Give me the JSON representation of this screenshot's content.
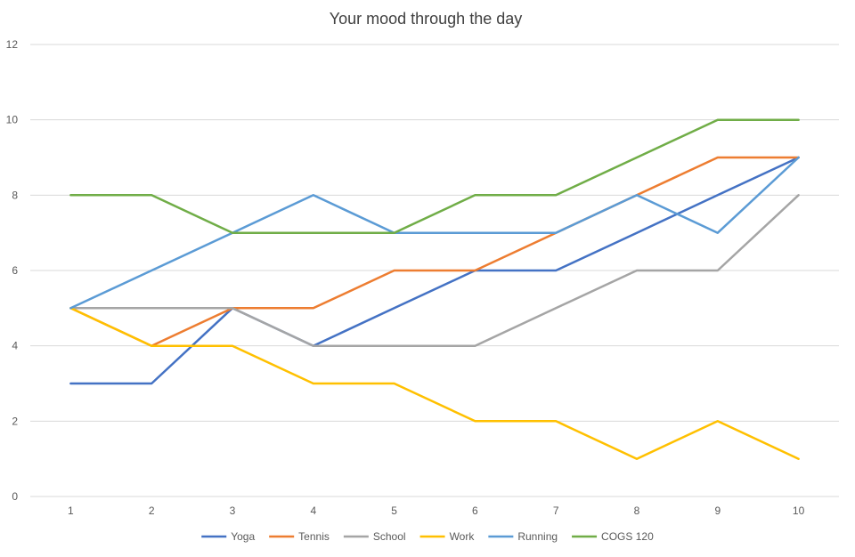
{
  "chart_data": {
    "type": "line",
    "title": "Your mood through the day",
    "xlabel": "",
    "ylabel": "",
    "x": [
      1,
      2,
      3,
      4,
      5,
      6,
      7,
      8,
      9,
      10
    ],
    "ylim": [
      0,
      12
    ],
    "y_ticks": [
      0,
      2,
      4,
      6,
      8,
      10,
      12
    ],
    "grid": "horizontal",
    "legend_position": "bottom",
    "series": [
      {
        "name": "Yoga",
        "color": "#4472C4",
        "values": [
          3,
          3,
          5,
          4,
          5,
          6,
          6,
          7,
          8,
          9
        ]
      },
      {
        "name": "Tennis",
        "color": "#ED7D31",
        "values": [
          5,
          4,
          5,
          5,
          6,
          6,
          7,
          8,
          9,
          9
        ]
      },
      {
        "name": "School",
        "color": "#A5A5A5",
        "values": [
          5,
          5,
          5,
          4,
          4,
          4,
          5,
          6,
          6,
          8
        ]
      },
      {
        "name": "Work",
        "color": "#FFC000",
        "values": [
          5,
          4,
          4,
          3,
          3,
          2,
          2,
          1,
          2,
          1
        ]
      },
      {
        "name": "Running",
        "color": "#5B9BD5",
        "values": [
          5,
          6,
          7,
          8,
          7,
          7,
          7,
          8,
          7,
          9
        ]
      },
      {
        "name": "COGS 120",
        "color": "#70AD47",
        "values": [
          8,
          8,
          7,
          7,
          7,
          8,
          8,
          9,
          10,
          10
        ]
      }
    ]
  }
}
